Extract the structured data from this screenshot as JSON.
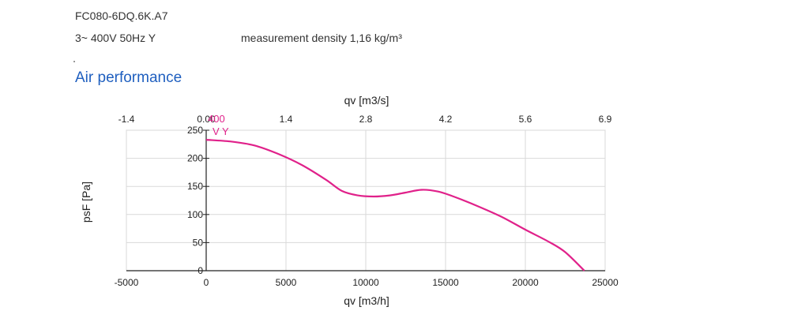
{
  "header": {
    "model": "FC080-6DQ.6K.A7",
    "supply": "3~ 400V 50Hz Y",
    "density": "measurement density 1,16 kg/m³"
  },
  "section": {
    "title": "Air performance"
  },
  "chart_data": {
    "type": "line",
    "title": "",
    "xlabel": "qv [m3/h]",
    "x2label": "qv [m3/s]",
    "ylabel": "psF [Pa]",
    "xlim": [
      -5000,
      25000
    ],
    "ylim": [
      0,
      250
    ],
    "x_ticks": [
      "-5000",
      "0",
      "5000",
      "10000",
      "15000",
      "20000",
      "25000"
    ],
    "x2_ticks": [
      "-1.4",
      "0.00",
      "1.4",
      "2.8",
      "4.2",
      "5.6",
      "6.9"
    ],
    "y_ticks": [
      "0",
      "50",
      "100",
      "150",
      "200",
      "250"
    ],
    "grid": true,
    "series_color": "#e0218a",
    "series": [
      {
        "label_top": "400",
        "label_bottom": "V Y",
        "x": [
          0,
          1500,
          3000,
          4500,
          6000,
          7500,
          8500,
          9500,
          10500,
          11500,
          12500,
          13500,
          14500,
          15500,
          17000,
          18500,
          20000,
          21500,
          22500,
          23700
        ],
        "y": [
          233,
          230,
          223,
          208,
          188,
          162,
          142,
          134,
          132,
          134,
          139,
          144,
          141,
          132,
          115,
          96,
          73,
          51,
          33,
          0
        ]
      }
    ]
  }
}
